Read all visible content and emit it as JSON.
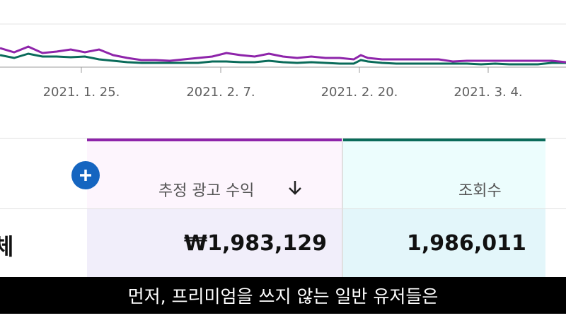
{
  "chart": {
    "x_ticks": [
      "2021. 1. 25.",
      "2021. 2. 7.",
      "2021. 2. 20.",
      "2021. 3. 4."
    ],
    "series_colors": {
      "revenue": "#8e24aa",
      "views": "#0a6b5a"
    }
  },
  "table": {
    "add_icon": "plus-icon",
    "row_label": "체",
    "revenue_header": "추정 광고 수익",
    "sort_icon": "arrow-down-icon",
    "views_header": "조회수",
    "revenue_value": "₩1,983,129",
    "views_value": "1,986,011"
  },
  "subtitle": "먼저, 프리미엄을 쓰지 않는 일반 유저들은"
}
